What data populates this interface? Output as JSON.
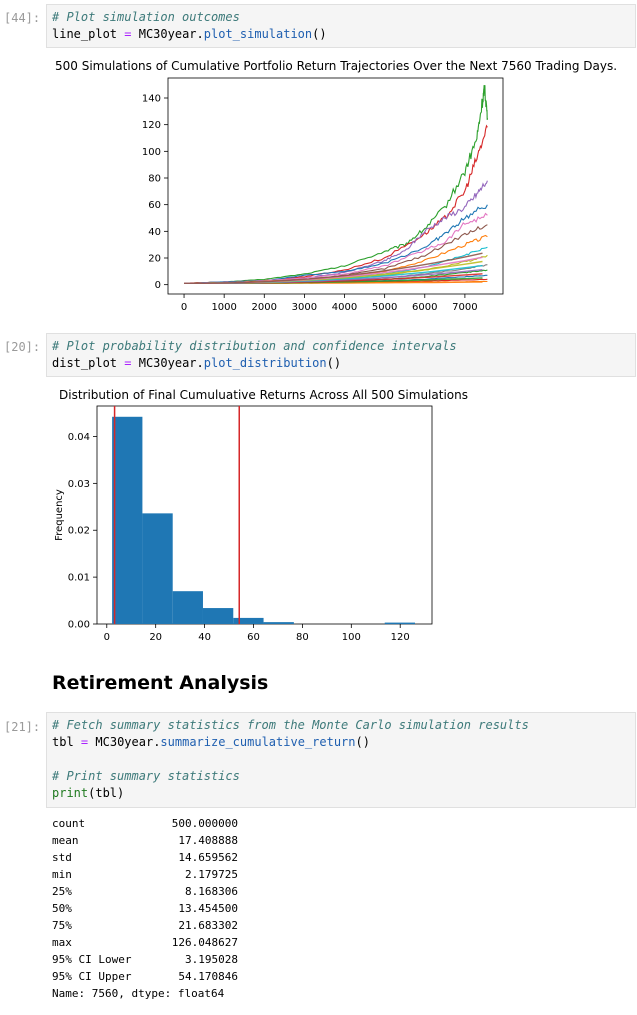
{
  "cells": [
    {
      "prompt": "[44]:",
      "comment": "# Plot simulation outcomes",
      "code": {
        "var": "line_plot",
        "op": "=",
        "obj": "MC30year.",
        "method": "plot_simulation",
        "args": "()"
      }
    },
    {
      "prompt": "[20]:",
      "comment": "# Plot probability distribution and confidence intervals",
      "code": {
        "var": "dist_plot",
        "op": "=",
        "obj": "MC30year.",
        "method": "plot_distribution",
        "args": "()"
      }
    },
    {
      "prompt": "[21]:",
      "comment": "# Fetch summary statistics from the Monte Carlo simulation results",
      "code": {
        "var": "tbl",
        "op": "=",
        "obj": "MC30year.",
        "method": "summarize_cumulative_return",
        "args": "()"
      },
      "comment2": "# Print summary statistics",
      "print_fn": "print",
      "print_args": "(tbl)"
    }
  ],
  "heading": "Retirement Analysis",
  "summary": {
    "rows": [
      {
        "key": "count",
        "value": "500.000000"
      },
      {
        "key": "mean",
        "value": "17.408888"
      },
      {
        "key": "std",
        "value": "14.659562"
      },
      {
        "key": "min",
        "value": "2.179725"
      },
      {
        "key": "25%",
        "value": "8.168306"
      },
      {
        "key": "50%",
        "value": "13.454500"
      },
      {
        "key": "75%",
        "value": "21.683302"
      },
      {
        "key": "max",
        "value": "126.048627"
      },
      {
        "key": "95% CI Lower",
        "value": "3.195028"
      },
      {
        "key": "95% CI Upper",
        "value": "54.170846"
      }
    ],
    "footer": "Name: 7560, dtype: float64"
  },
  "chart_data": [
    {
      "type": "line",
      "title": "500 Simulations of Cumulative Portfolio Return Trajectories Over the Next 7560 Trading Days.",
      "xlabel": "",
      "ylabel": "",
      "xlim": [
        -400,
        7950
      ],
      "ylim": [
        -7,
        155
      ],
      "xticks": [
        0,
        1000,
        2000,
        3000,
        4000,
        5000,
        6000,
        7000
      ],
      "yticks": [
        0,
        20,
        40,
        60,
        80,
        100,
        120,
        140
      ],
      "legend": "none",
      "grid": false,
      "series": [
        {
          "color": "#2ca02c",
          "values": [
            [
              0,
              1
            ],
            [
              1000,
              2
            ],
            [
              2000,
              4
            ],
            [
              3000,
              8
            ],
            [
              4000,
              14
            ],
            [
              5000,
              25
            ],
            [
              5500,
              30
            ],
            [
              6000,
              42
            ],
            [
              6500,
              58
            ],
            [
              7000,
              85
            ],
            [
              7300,
              110
            ],
            [
              7450,
              140
            ],
            [
              7500,
              147
            ],
            [
              7560,
              125
            ]
          ]
        },
        {
          "color": "#d62728",
          "values": [
            [
              0,
              1
            ],
            [
              1000,
              2
            ],
            [
              2000,
              3
            ],
            [
              3000,
              6
            ],
            [
              4000,
              11
            ],
            [
              5000,
              20
            ],
            [
              6000,
              38
            ],
            [
              6500,
              50
            ],
            [
              7000,
              70
            ],
            [
              7300,
              95
            ],
            [
              7560,
              118
            ]
          ]
        },
        {
          "color": "#9467bd",
          "values": [
            [
              0,
              1
            ],
            [
              1000,
              2
            ],
            [
              2000,
              3
            ],
            [
              3000,
              5
            ],
            [
              4000,
              9
            ],
            [
              5000,
              18
            ],
            [
              5500,
              25
            ],
            [
              6000,
              40
            ],
            [
              6500,
              50
            ],
            [
              7000,
              58
            ],
            [
              7300,
              68
            ],
            [
              7560,
              78
            ]
          ]
        },
        {
          "color": "#1f77b4",
          "values": [
            [
              0,
              1
            ],
            [
              1000,
              2
            ],
            [
              2000,
              3
            ],
            [
              3000,
              7
            ],
            [
              4000,
              10
            ],
            [
              5000,
              16
            ],
            [
              6000,
              28
            ],
            [
              6500,
              38
            ],
            [
              7000,
              50
            ],
            [
              7560,
              60
            ]
          ]
        },
        {
          "color": "#e377c2",
          "values": [
            [
              0,
              1
            ],
            [
              1000,
              1.5
            ],
            [
              2000,
              3
            ],
            [
              3000,
              5
            ],
            [
              4000,
              8
            ],
            [
              5000,
              14
            ],
            [
              6000,
              26
            ],
            [
              6500,
              32
            ],
            [
              7000,
              46
            ],
            [
              7560,
              52
            ]
          ]
        },
        {
          "color": "#8c564b",
          "values": [
            [
              0,
              1
            ],
            [
              1000,
              1.5
            ],
            [
              2000,
              2.5
            ],
            [
              3000,
              4
            ],
            [
              4000,
              7
            ],
            [
              5000,
              12
            ],
            [
              6000,
              22
            ],
            [
              7000,
              38
            ],
            [
              7560,
              45
            ]
          ]
        },
        {
          "color": "#ff7f0e",
          "values": [
            [
              0,
              1
            ],
            [
              1000,
              1.5
            ],
            [
              2000,
              2.5
            ],
            [
              3000,
              4
            ],
            [
              4000,
              6
            ],
            [
              5000,
              10
            ],
            [
              6000,
              18
            ],
            [
              7000,
              30
            ],
            [
              7560,
              36
            ]
          ]
        },
        {
          "color": "#17becf",
          "values": [
            [
              0,
              1
            ],
            [
              1000,
              1.5
            ],
            [
              2000,
              2
            ],
            [
              3000,
              3
            ],
            [
              4000,
              5
            ],
            [
              5000,
              8
            ],
            [
              6000,
              13
            ],
            [
              7000,
              22
            ],
            [
              7560,
              28
            ]
          ]
        },
        {
          "color": "#bcbd22",
          "values": [
            [
              0,
              1
            ],
            [
              1000,
              1.3
            ],
            [
              2000,
              2
            ],
            [
              3000,
              3
            ],
            [
              4000,
              4.5
            ],
            [
              5000,
              7
            ],
            [
              6000,
              11
            ],
            [
              7000,
              17
            ],
            [
              7560,
              22
            ]
          ]
        },
        {
          "color": "#7f7f7f",
          "values": [
            [
              0,
              1
            ],
            [
              1000,
              1.3
            ],
            [
              2000,
              1.8
            ],
            [
              3000,
              2.5
            ],
            [
              4000,
              3.5
            ],
            [
              5000,
              5
            ],
            [
              6000,
              8
            ],
            [
              7000,
              12
            ],
            [
              7560,
              15
            ]
          ]
        },
        {
          "color": "#2ca02c",
          "values": [
            [
              0,
              1
            ],
            [
              1000,
              1.2
            ],
            [
              2000,
              1.6
            ],
            [
              3000,
              2.2
            ],
            [
              4000,
              3
            ],
            [
              5000,
              4
            ],
            [
              6000,
              6
            ],
            [
              7000,
              9
            ],
            [
              7560,
              11
            ]
          ]
        },
        {
          "color": "#1f77b4",
          "values": [
            [
              0,
              1
            ],
            [
              1000,
              1.1
            ],
            [
              2000,
              1.4
            ],
            [
              3000,
              1.8
            ],
            [
              4000,
              2.3
            ],
            [
              5000,
              3
            ],
            [
              6000,
              4
            ],
            [
              7000,
              6
            ],
            [
              7560,
              7
            ]
          ]
        },
        {
          "color": "#d62728",
          "values": [
            [
              0,
              1
            ],
            [
              1000,
              1.1
            ],
            [
              2000,
              1.2
            ],
            [
              3000,
              1.5
            ],
            [
              4000,
              1.8
            ],
            [
              5000,
              2.2
            ],
            [
              6000,
              2.8
            ],
            [
              7000,
              3.5
            ],
            [
              7560,
              4
            ]
          ]
        },
        {
          "color": "#ff7f0e",
          "values": [
            [
              0,
              1
            ],
            [
              1000,
              1
            ],
            [
              2000,
              1.1
            ],
            [
              3000,
              1.2
            ],
            [
              4000,
              1.4
            ],
            [
              5000,
              1.6
            ],
            [
              6000,
              1.9
            ],
            [
              7000,
              2.2
            ],
            [
              7560,
              2.4
            ]
          ]
        }
      ]
    },
    {
      "type": "bar",
      "title": "Distribution of Final Cumuluative Returns Across All 500 Simulations",
      "xlabel": "",
      "ylabel": "Frequency",
      "xlim": [
        -4,
        133
      ],
      "ylim": [
        0,
        0.0465
      ],
      "xticks": [
        0,
        20,
        40,
        60,
        80,
        100,
        120
      ],
      "yticks": [
        "0.00",
        "0.01",
        "0.02",
        "0.03",
        "0.04"
      ],
      "ytick_values": [
        0,
        0.01,
        0.02,
        0.03,
        0.04
      ],
      "bins": [
        {
          "x0": 2.18,
          "x1": 14.57,
          "value": 0.0442
        },
        {
          "x0": 14.57,
          "x1": 26.96,
          "value": 0.0236
        },
        {
          "x0": 26.96,
          "x1": 39.34,
          "value": 0.007
        },
        {
          "x0": 39.34,
          "x1": 51.73,
          "value": 0.0034
        },
        {
          "x0": 51.73,
          "x1": 64.12,
          "value": 0.0013
        },
        {
          "x0": 64.12,
          "x1": 76.51,
          "value": 0.0004
        },
        {
          "x0": 76.51,
          "x1": 88.89,
          "value": 0.0
        },
        {
          "x0": 88.89,
          "x1": 101.28,
          "value": 0.0
        },
        {
          "x0": 101.28,
          "x1": 113.67,
          "value": 0.0
        },
        {
          "x0": 113.67,
          "x1": 126.05,
          "value": 0.0003
        }
      ],
      "bar_color": "#1f77b4",
      "vlines": [
        {
          "x": 3.195028,
          "color": "#d62728"
        },
        {
          "x": 54.170846,
          "color": "#d62728"
        }
      ]
    }
  ]
}
